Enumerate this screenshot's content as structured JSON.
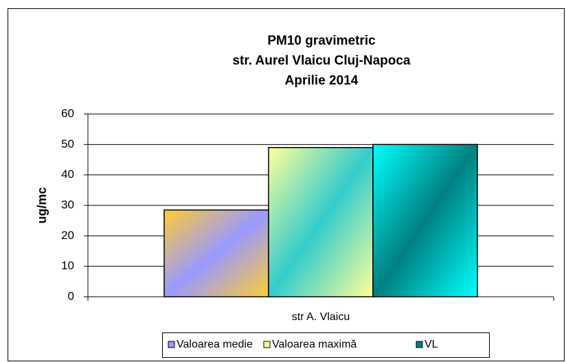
{
  "chart_data": {
    "type": "bar",
    "title": [
      "PM10 gravimetric",
      "str. Aurel Vlaicu Cluj-Napoca",
      "Aprilie 2014"
    ],
    "ylabel": "ug/mc",
    "categories": [
      "str A. Vlaicu"
    ],
    "series": [
      {
        "name": "Valoarea medie",
        "color": "#9999ff",
        "gradient": [
          "#ffcc33",
          "#9999ff"
        ],
        "values": [
          28.5
        ]
      },
      {
        "name": "Valoarea maximă",
        "color": "#ffff99",
        "gradient": [
          "#ffff99",
          "#33cccc"
        ],
        "values": [
          49
        ]
      },
      {
        "name": "VL",
        "color": "#008080",
        "gradient": [
          "#00ffff",
          "#008080"
        ],
        "values": [
          50
        ]
      }
    ],
    "ylim": [
      0,
      60
    ],
    "yticks": [
      0,
      10,
      20,
      30,
      40,
      50,
      60
    ],
    "grid": true,
    "legend": "bottom"
  }
}
